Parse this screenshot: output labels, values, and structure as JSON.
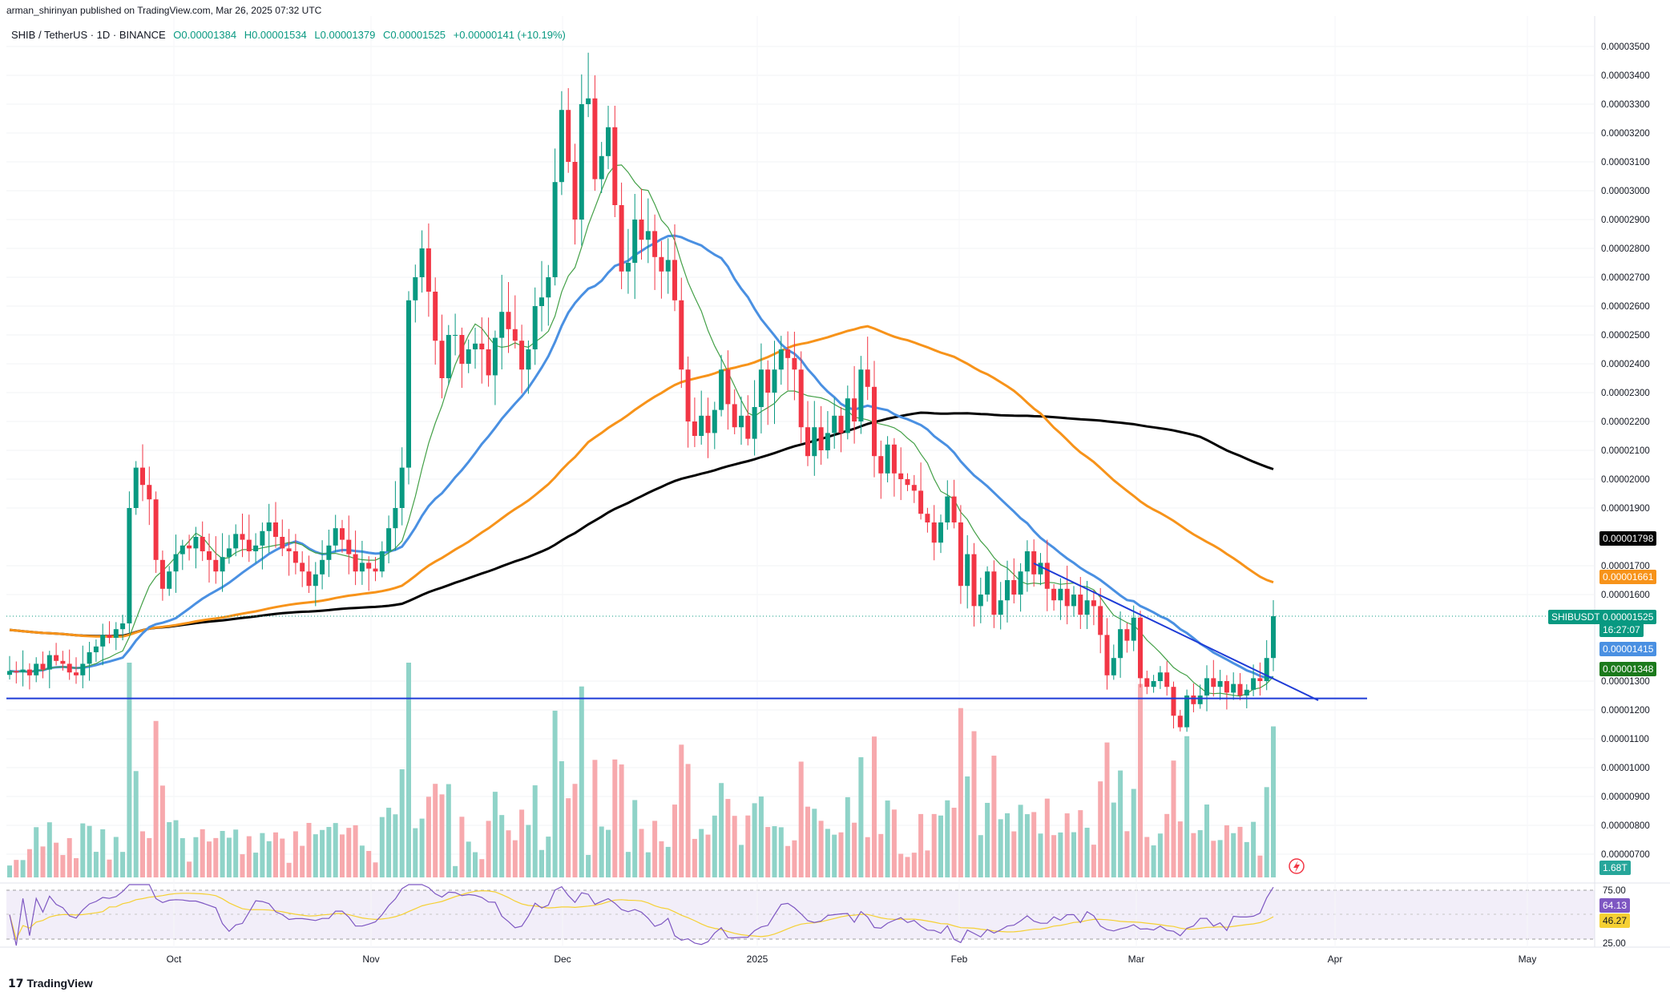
{
  "header": {
    "published": "arman_shirinyan published on TradingView.com, Mar 26, 2025 07:32 UTC",
    "symbol": "SHIB / TetherUS · 1D · BINANCE",
    "open": "O0.00001384",
    "high": "H0.00001534",
    "low": "L0.00001379",
    "close": "C0.00001525",
    "change": "+0.00000141 (+10.19%)"
  },
  "price_labels": {
    "ma200": "0.00001798",
    "ma100": "0.00001661",
    "symbol_tag": "SHIBUSDT",
    "last_price": "0.00001525",
    "countdown": "16:27:07",
    "ma50": "0.00001415",
    "ma20": "0.00001348",
    "volume": "1.68T",
    "rsi": "64.13",
    "rsi_ma": "46.27"
  },
  "brand": "TradingView",
  "colors": {
    "up": "#089981",
    "down": "#f23645",
    "ma20": "#43a047",
    "ma50": "#4a90e2",
    "ma100": "#f7931a",
    "ma200": "#000000",
    "trendline": "#1e3bd6",
    "rsi": "#7e57c2",
    "rsi_ma": "#f5d033"
  },
  "chart_data": {
    "type": "candlestick",
    "title": "SHIB / TetherUS · 1D · BINANCE",
    "y_ticks": [
      "0.00003500",
      "0.00003400",
      "0.00003300",
      "0.00003200",
      "0.00003100",
      "0.00003000",
      "0.00002900",
      "0.00002800",
      "0.00002700",
      "0.00002600",
      "0.00002500",
      "0.00002400",
      "0.00002300",
      "0.00002200",
      "0.00002100",
      "0.00002000",
      "0.00001900",
      "0.00001700",
      "0.00001600",
      "0.00001300",
      "0.00001200",
      "0.00001100",
      "0.00001000",
      "0.00000900",
      "0.00000800",
      "0.00000700"
    ],
    "y_range": [
      6.5e-06,
      3.55e-05
    ],
    "x_ticks": [
      "Oct",
      "Nov",
      "Dec",
      "2025",
      "Feb",
      "Mar",
      "Apr",
      "May"
    ],
    "candles_close": [
      1.335e-05,
      1.33e-05,
      1.34e-05,
      1.32e-05,
      1.36e-05,
      1.34e-05,
      1.39e-05,
      1.37e-05,
      1.36e-05,
      1.33e-05,
      1.32e-05,
      1.36e-05,
      1.4e-05,
      1.42e-05,
      1.46e-05,
      1.45e-05,
      1.48e-05,
      1.5e-05,
      1.9e-05,
      2.04e-05,
      1.98e-05,
      1.93e-05,
      1.72e-05,
      1.62e-05,
      1.68e-05,
      1.74e-05,
      1.77e-05,
      1.76e-05,
      1.8e-05,
      1.75e-05,
      1.72e-05,
      1.68e-05,
      1.73e-05,
      1.76e-05,
      1.81e-05,
      1.79e-05,
      1.75e-05,
      1.77e-05,
      1.82e-05,
      1.85e-05,
      1.8e-05,
      1.76e-05,
      1.75e-05,
      1.71e-05,
      1.68e-05,
      1.63e-05,
      1.67e-05,
      1.72e-05,
      1.77e-05,
      1.83e-05,
      1.79e-05,
      1.74e-05,
      1.68e-05,
      1.71e-05,
      1.69e-05,
      1.68e-05,
      1.75e-05,
      1.83e-05,
      1.9e-05,
      2.04e-05,
      2.62e-05,
      2.7e-05,
      2.8e-05,
      2.65e-05,
      2.48e-05,
      2.35e-05,
      2.5e-05,
      2.5e-05,
      2.4e-05,
      2.45e-05,
      2.47e-05,
      2.45e-05,
      2.36e-05,
      2.49e-05,
      2.58e-05,
      2.52e-05,
      2.48e-05,
      2.38e-05,
      2.45e-05,
      2.6e-05,
      2.63e-05,
      2.7e-05,
      3.03e-05,
      3.28e-05,
      3.1e-05,
      2.9e-05,
      3.3e-05,
      3.32e-05,
      3.04e-05,
      3.12e-05,
      3.22e-05,
      2.95e-05,
      2.72e-05,
      2.75e-05,
      2.9e-05,
      2.83e-05,
      2.86e-05,
      2.77e-05,
      2.72e-05,
      2.76e-05,
      2.62e-05,
      2.38e-05,
      2.2e-05,
      2.15e-05,
      2.22e-05,
      2.16e-05,
      2.24e-05,
      2.38e-05,
      2.26e-05,
      2.18e-05,
      2.22e-05,
      2.14e-05,
      2.25e-05,
      2.38e-05,
      2.3e-05,
      2.38e-05,
      2.45e-05,
      2.42e-05,
      2.38e-05,
      2.18e-05,
      2.08e-05,
      2.18e-05,
      2.1e-05,
      2.16e-05,
      2.22e-05,
      2.16e-05,
      2.28e-05,
      2.2e-05,
      2.38e-05,
      2.32e-05,
      2.08e-05,
      2.02e-05,
      2.12e-05,
      2.02e-05,
      2e-05,
      1.98e-05,
      1.96e-05,
      1.88e-05,
      1.85e-05,
      1.78e-05,
      1.85e-05,
      1.94e-05,
      1.85e-05,
      1.63e-05,
      1.74e-05,
      1.56e-05,
      1.6e-05,
      1.68e-05,
      1.53e-05,
      1.58e-05,
      1.65e-05,
      1.6e-05,
      1.68e-05,
      1.75e-05,
      1.67e-05,
      1.71e-05,
      1.62e-05,
      1.58e-05,
      1.62e-05,
      1.56e-05,
      1.6e-05,
      1.53e-05,
      1.58e-05,
      1.56e-05,
      1.46e-05,
      1.32e-05,
      1.38e-05,
      1.48e-05,
      1.44e-05,
      1.52e-05,
      1.31e-05,
      1.28e-05,
      1.3e-05,
      1.33e-05,
      1.28e-05,
      1.18e-05,
      1.14e-05,
      1.25e-05,
      1.22e-05,
      1.25e-05,
      1.31e-05,
      1.28e-05,
      1.3e-05,
      1.26e-05,
      1.29e-05,
      1.25e-05,
      1.27e-05,
      1.31e-05,
      1.3e-05,
      1.38e-05,
      1.525e-05
    ],
    "last_close": 1.525e-05,
    "moving_averages": {
      "ma20": 1.348e-05,
      "ma50": 1.415e-05,
      "ma100": 1.661e-05,
      "ma200": 1.798e-05
    },
    "volume_last": "1.68T",
    "rsi": {
      "value": 64.13,
      "ma": 46.27,
      "levels": [
        75,
        25
      ]
    },
    "rsi_ticks": [
      "75.00",
      "25.00"
    ],
    "support_level": 1.24e-05
  }
}
